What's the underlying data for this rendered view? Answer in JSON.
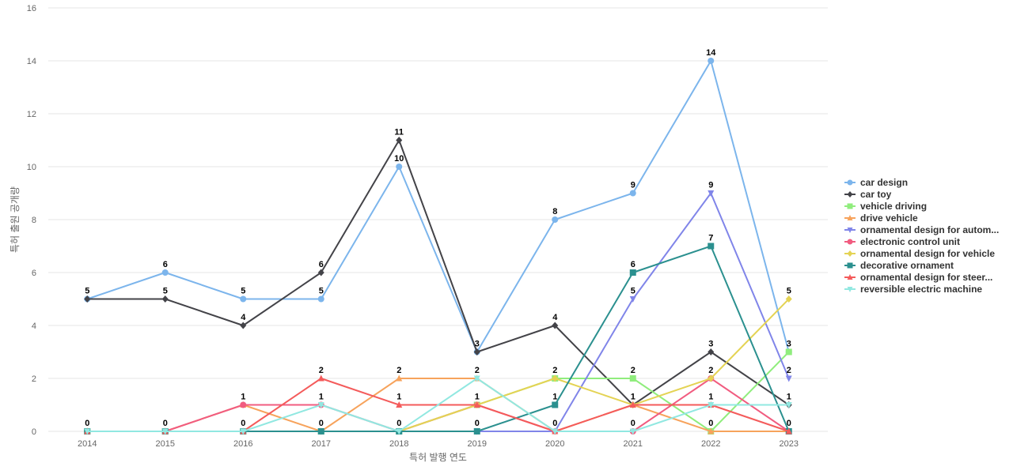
{
  "chart_data": {
    "type": "line",
    "xlabel": "특허 발행 연도",
    "ylabel": "특허 출원 공개량",
    "ylim": [
      0,
      16
    ],
    "yticks": [
      0,
      2,
      4,
      6,
      8,
      10,
      12,
      14,
      16
    ],
    "categories": [
      "2014",
      "2015",
      "2016",
      "2017",
      "2018",
      "2019",
      "2020",
      "2021",
      "2022",
      "2023"
    ],
    "grid": true,
    "legend_position": "right",
    "series": [
      {
        "name": "car design",
        "color": "#7cb5ec",
        "marker": "circle",
        "values": [
          5,
          6,
          5,
          5,
          10,
          3,
          8,
          9,
          14,
          3
        ]
      },
      {
        "name": "car toy",
        "color": "#434348",
        "marker": "diamond",
        "values": [
          5,
          5,
          4,
          6,
          11,
          3,
          4,
          1,
          3,
          1
        ]
      },
      {
        "name": "vehicle driving",
        "color": "#90ed7d",
        "marker": "square",
        "values": [
          0,
          0,
          0,
          0,
          0,
          1,
          2,
          2,
          0,
          3
        ]
      },
      {
        "name": "drive vehicle",
        "color": "#f7a35c",
        "marker": "triangle",
        "values": [
          0,
          0,
          1,
          0,
          2,
          2,
          0,
          1,
          0,
          0
        ]
      },
      {
        "name": "ornamental design for autom...",
        "color": "#8085e9",
        "marker": "triangle-down",
        "values": [
          0,
          0,
          0,
          0,
          0,
          0,
          0,
          5,
          9,
          2
        ]
      },
      {
        "name": "electronic control unit",
        "color": "#f15c80",
        "marker": "circle",
        "values": [
          0,
          0,
          1,
          1,
          0,
          1,
          0,
          0,
          2,
          0
        ]
      },
      {
        "name": "ornamental design for vehicle",
        "color": "#e4d354",
        "marker": "diamond",
        "values": [
          0,
          0,
          0,
          0,
          0,
          1,
          2,
          1,
          2,
          5
        ]
      },
      {
        "name": "decorative ornament",
        "color": "#2b908f",
        "marker": "square",
        "values": [
          0,
          0,
          0,
          0,
          0,
          0,
          1,
          6,
          7,
          0
        ]
      },
      {
        "name": "ornamental design for steer...",
        "color": "#f45b5b",
        "marker": "triangle",
        "values": [
          0,
          0,
          0,
          2,
          1,
          1,
          0,
          1,
          1,
          0
        ]
      },
      {
        "name": "reversible electric machine",
        "color": "#91e8e1",
        "marker": "triangle-down",
        "values": [
          0,
          0,
          0,
          1,
          0,
          2,
          0,
          0,
          1,
          1
        ]
      }
    ],
    "data_labels": [
      {
        "x": "2014",
        "y": 5,
        "text": "5"
      },
      {
        "x": "2014",
        "y": 0,
        "text": "0"
      },
      {
        "x": "2015",
        "y": 6,
        "text": "6"
      },
      {
        "x": "2015",
        "y": 5,
        "text": "5"
      },
      {
        "x": "2015",
        "y": 0,
        "text": "0"
      },
      {
        "x": "2016",
        "y": 5,
        "text": "5"
      },
      {
        "x": "2016",
        "y": 4,
        "text": "4"
      },
      {
        "x": "2016",
        "y": 1,
        "text": "1"
      },
      {
        "x": "2016",
        "y": 0,
        "text": "0"
      },
      {
        "x": "2017",
        "y": 6,
        "text": "6"
      },
      {
        "x": "2017",
        "y": 5,
        "text": "5"
      },
      {
        "x": "2017",
        "y": 2,
        "text": "2"
      },
      {
        "x": "2017",
        "y": 1,
        "text": "1"
      },
      {
        "x": "2017",
        "y": 0,
        "text": "0"
      },
      {
        "x": "2018",
        "y": 11,
        "text": "11"
      },
      {
        "x": "2018",
        "y": 10,
        "text": "10"
      },
      {
        "x": "2018",
        "y": 2,
        "text": "2"
      },
      {
        "x": "2018",
        "y": 1,
        "text": "1"
      },
      {
        "x": "2018",
        "y": 0,
        "text": "0"
      },
      {
        "x": "2019",
        "y": 3,
        "text": "3"
      },
      {
        "x": "2019",
        "y": 2,
        "text": "2"
      },
      {
        "x": "2019",
        "y": 1,
        "text": "1"
      },
      {
        "x": "2019",
        "y": 0,
        "text": "0"
      },
      {
        "x": "2020",
        "y": 8,
        "text": "8"
      },
      {
        "x": "2020",
        "y": 4,
        "text": "4"
      },
      {
        "x": "2020",
        "y": 2,
        "text": "2"
      },
      {
        "x": "2020",
        "y": 1,
        "text": "1"
      },
      {
        "x": "2020",
        "y": 0,
        "text": "0"
      },
      {
        "x": "2021",
        "y": 9,
        "text": "9"
      },
      {
        "x": "2021",
        "y": 6,
        "text": "6"
      },
      {
        "x": "2021",
        "y": 5,
        "text": "5"
      },
      {
        "x": "2021",
        "y": 2,
        "text": "2"
      },
      {
        "x": "2021",
        "y": 1,
        "text": "1"
      },
      {
        "x": "2021",
        "y": 0,
        "text": "0"
      },
      {
        "x": "2022",
        "y": 14,
        "text": "14"
      },
      {
        "x": "2022",
        "y": 9,
        "text": "9"
      },
      {
        "x": "2022",
        "y": 7,
        "text": "7"
      },
      {
        "x": "2022",
        "y": 3,
        "text": "3"
      },
      {
        "x": "2022",
        "y": 2,
        "text": "2"
      },
      {
        "x": "2022",
        "y": 1,
        "text": "1"
      },
      {
        "x": "2022",
        "y": 0,
        "text": "0"
      },
      {
        "x": "2023",
        "y": 5,
        "text": "5"
      },
      {
        "x": "2023",
        "y": 3,
        "text": "3"
      },
      {
        "x": "2023",
        "y": 2,
        "text": "2"
      },
      {
        "x": "2023",
        "y": 1,
        "text": "1"
      },
      {
        "x": "2023",
        "y": 0,
        "text": "0"
      }
    ]
  }
}
